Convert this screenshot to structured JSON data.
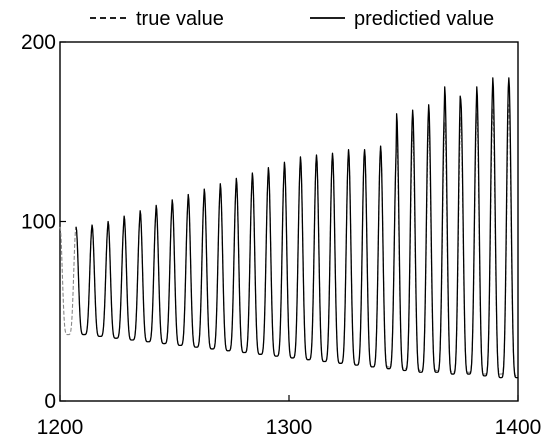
{
  "chart_data": {
    "type": "line",
    "title": "",
    "xlabel": "",
    "ylabel": "",
    "xlim": [
      1200,
      1400
    ],
    "ylim": [
      0,
      200
    ],
    "x_ticks": [
      1200,
      1300,
      1400
    ],
    "x_tick_labels": [
      "1200",
      "1300",
      "1400"
    ],
    "y_ticks": [
      0,
      100,
      200
    ],
    "y_tick_labels": [
      "0",
      "100",
      "200"
    ],
    "grid": false,
    "legend_position": "top",
    "period": 7,
    "series": [
      {
        "name": "true value",
        "style": "dashed",
        "color": "#888888",
        "x_start": 1200,
        "x_end": 1400,
        "peaks": [
          97,
          97,
          98,
          100,
          103,
          106,
          109,
          112,
          115,
          118,
          121,
          124,
          127,
          130,
          133,
          136,
          137,
          138,
          140,
          140,
          142,
          147,
          150,
          153,
          155,
          158,
          160,
          163,
          165,
          168
        ],
        "troughs": [
          37,
          37,
          36,
          35,
          34,
          33,
          32,
          31,
          30,
          29,
          28,
          27,
          26,
          25,
          24,
          23,
          22,
          21,
          20,
          19,
          19,
          18,
          17,
          17,
          16,
          16,
          15,
          15,
          14,
          14
        ]
      },
      {
        "name": "predictied value",
        "style": "solid",
        "color": "#000000",
        "x_start": 1207,
        "x_end": 1400,
        "peaks": [
          97,
          97,
          98,
          100,
          103,
          106,
          109,
          112,
          115,
          118,
          121,
          124,
          127,
          130,
          133,
          136,
          137,
          138,
          140,
          140,
          142,
          160,
          162,
          165,
          175,
          168,
          175,
          180,
          180,
          183
        ],
        "troughs": [
          37,
          37,
          36,
          35,
          34,
          33,
          32,
          31,
          30,
          29,
          28,
          27,
          26,
          25,
          24,
          23,
          22,
          21,
          20,
          19,
          18,
          17,
          16,
          16,
          15,
          15,
          14,
          13,
          13,
          12
        ]
      }
    ]
  }
}
